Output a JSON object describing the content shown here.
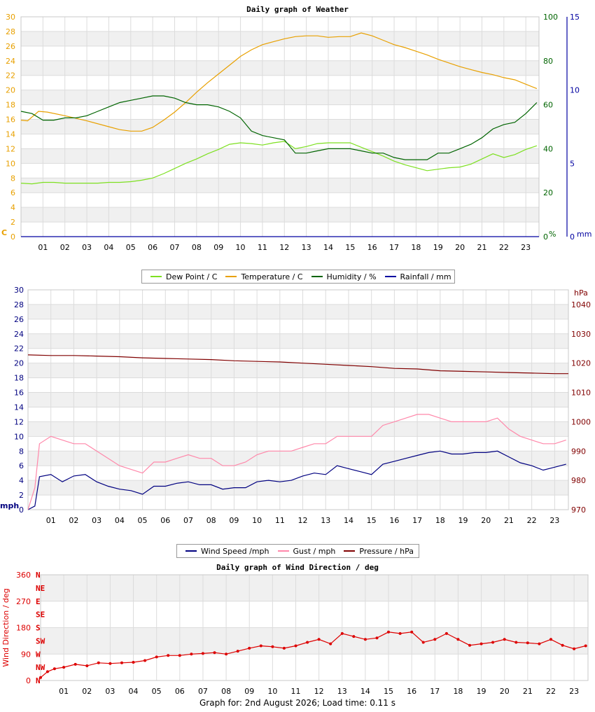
{
  "footer_text": "Graph for: 2nd August 2026; Load time: 0.11 s",
  "chart_data": [
    {
      "type": "line",
      "title": "Daily graph of Weather",
      "x_ticks": [
        "01",
        "02",
        "03",
        "04",
        "05",
        "06",
        "07",
        "08",
        "09",
        "10",
        "11",
        "12",
        "13",
        "14",
        "15",
        "16",
        "17",
        "18",
        "19",
        "20",
        "21",
        "22",
        "23"
      ],
      "grid": true,
      "legend_position": "bottom",
      "axes": {
        "left": {
          "label": "C",
          "ylim": [
            0,
            30
          ],
          "ticks": [
            0,
            2,
            4,
            6,
            8,
            10,
            12,
            14,
            16,
            18,
            20,
            22,
            24,
            26,
            28,
            30
          ],
          "color": "#e8a000"
        },
        "right1": {
          "label": "%",
          "ylim": [
            0,
            100
          ],
          "ticks": [
            0,
            20,
            40,
            60,
            80,
            100
          ],
          "color": "#006400"
        },
        "right2": {
          "label": "mm",
          "ylim": [
            0,
            15
          ],
          "ticks": [
            0,
            5,
            10,
            15
          ],
          "color": "#0000a0"
        }
      },
      "series": [
        {
          "name": "Dew Point / C",
          "axis": "left",
          "color": "#7de020",
          "x": [
            0,
            0.5,
            1,
            1.5,
            2,
            2.5,
            3,
            3.5,
            4,
            4.5,
            5,
            5.5,
            6,
            6.5,
            7,
            7.5,
            8,
            8.5,
            9,
            9.5,
            10,
            10.5,
            11,
            11.5,
            12,
            12.5,
            13,
            13.5,
            14,
            14.5,
            15,
            15.5,
            16,
            16.5,
            17,
            17.5,
            18,
            18.5,
            19,
            19.5,
            20,
            20.5,
            21,
            21.5,
            22,
            22.5,
            23,
            23.5
          ],
          "y": [
            7.3,
            7.2,
            7.4,
            7.4,
            7.3,
            7.3,
            7.3,
            7.3,
            7.4,
            7.4,
            7.5,
            7.7,
            8.0,
            8.6,
            9.3,
            10.0,
            10.6,
            11.3,
            11.9,
            12.6,
            12.8,
            12.7,
            12.5,
            12.8,
            13.0,
            12.0,
            12.3,
            12.7,
            12.8,
            12.8,
            12.8,
            12.2,
            11.6,
            11.0,
            10.3,
            9.8,
            9.4,
            9.0,
            9.2,
            9.4,
            9.5,
            9.9,
            10.6,
            11.3,
            10.8,
            11.2,
            11.9,
            12.4
          ]
        },
        {
          "name": "Temperature / C",
          "axis": "left",
          "color": "#e8a000",
          "x": [
            0,
            0.3,
            0.8,
            1.2,
            2,
            3,
            4,
            4.5,
            5,
            5.5,
            6,
            6.5,
            7,
            7.5,
            8,
            8.5,
            9,
            9.5,
            10,
            10.5,
            11,
            11.5,
            12,
            12.5,
            13,
            13.5,
            14,
            14.5,
            15,
            15.5,
            16,
            16.5,
            17,
            17.5,
            18,
            18.5,
            19,
            19.5,
            20,
            20.5,
            21,
            21.5,
            22,
            22.5,
            23,
            23.5
          ],
          "y": [
            15.9,
            15.8,
            17.1,
            17.0,
            16.5,
            15.8,
            15.0,
            14.6,
            14.4,
            14.4,
            14.9,
            15.9,
            17.0,
            18.3,
            19.7,
            21.0,
            22.2,
            23.4,
            24.6,
            25.5,
            26.2,
            26.6,
            27.0,
            27.3,
            27.4,
            27.4,
            27.2,
            27.3,
            27.3,
            27.8,
            27.4,
            26.8,
            26.2,
            25.8,
            25.3,
            24.8,
            24.2,
            23.7,
            23.2,
            22.8,
            22.4,
            22.1,
            21.7,
            21.4,
            20.8,
            20.2
          ]
        },
        {
          "name": "Humidity / %",
          "axis": "right1",
          "color": "#006400",
          "x": [
            0,
            0.5,
            1,
            1.5,
            2,
            2.5,
            3,
            3.5,
            4,
            4.5,
            5,
            5.5,
            6,
            6.5,
            7,
            7.5,
            8,
            8.5,
            9,
            9.5,
            10,
            10.5,
            11,
            11.5,
            12,
            12.5,
            13,
            13.5,
            14,
            14.5,
            15,
            15.5,
            16,
            16.5,
            17,
            17.5,
            18,
            18.5,
            19,
            19.5,
            20,
            20.5,
            21,
            21.5,
            22,
            22.5,
            23,
            23.5
          ],
          "y": [
            57,
            56,
            53,
            53,
            54,
            54,
            55,
            57,
            59,
            61,
            62,
            63,
            64,
            64,
            63,
            61,
            60,
            60,
            59,
            57,
            54,
            48,
            46,
            45,
            44,
            38,
            38,
            39,
            40,
            40,
            40,
            39,
            38,
            38,
            36,
            35,
            35,
            35,
            38,
            38,
            40,
            42,
            45,
            49,
            51,
            52,
            56,
            61
          ]
        },
        {
          "name": "Rainfall / mm",
          "axis": "right2",
          "color": "#0000a0",
          "x": [
            0,
            23.6
          ],
          "y": [
            0,
            0
          ]
        }
      ]
    },
    {
      "type": "line",
      "title": "",
      "x_ticks": [
        "01",
        "02",
        "03",
        "04",
        "05",
        "06",
        "07",
        "08",
        "09",
        "10",
        "11",
        "12",
        "13",
        "14",
        "15",
        "16",
        "17",
        "18",
        "19",
        "20",
        "21",
        "22",
        "23"
      ],
      "grid": true,
      "legend_position": "bottom",
      "axes": {
        "left": {
          "label": "mph",
          "ylim": [
            0,
            30
          ],
          "ticks": [
            0,
            2,
            4,
            6,
            8,
            10,
            12,
            14,
            16,
            18,
            20,
            22,
            24,
            26,
            28,
            30
          ],
          "color": "#000080"
        },
        "right": {
          "label": "hPa",
          "ylim": [
            970,
            1045
          ],
          "ticks": [
            970,
            980,
            990,
            1000,
            1010,
            1020,
            1030,
            1040
          ],
          "color": "#800000"
        }
      },
      "series": [
        {
          "name": "Wind Speed /mph",
          "axis": "left",
          "color": "#000080",
          "x": [
            0,
            0.3,
            0.5,
            1,
            1.5,
            2,
            2.5,
            3,
            3.5,
            4,
            4.5,
            5,
            5.5,
            6,
            6.5,
            7,
            7.5,
            8,
            8.5,
            9,
            9.5,
            10,
            10.5,
            11,
            11.5,
            12,
            12.5,
            13,
            13.5,
            14,
            14.5,
            15,
            15.5,
            16,
            16.5,
            17,
            17.5,
            18,
            18.5,
            19,
            19.5,
            20,
            20.5,
            21,
            21.5,
            22,
            22.5,
            23,
            23.5
          ],
          "y": [
            0,
            0.5,
            4.5,
            4.8,
            3.8,
            4.6,
            4.8,
            3.8,
            3.2,
            2.8,
            2.6,
            2.1,
            3.2,
            3.2,
            3.6,
            3.8,
            3.4,
            3.4,
            2.8,
            3.0,
            3.0,
            3.8,
            4.0,
            3.8,
            4.0,
            4.6,
            5.0,
            4.8,
            6.0,
            5.6,
            5.2,
            4.8,
            6.2,
            6.6,
            7.0,
            7.4,
            7.8,
            8.0,
            7.6,
            7.6,
            7.8,
            7.8,
            8.0,
            7.2,
            6.4,
            6.0,
            5.4,
            5.8,
            6.2
          ]
        },
        {
          "name": "Gust / mph",
          "axis": "left",
          "color": "#ff88aa",
          "x": [
            0,
            0.3,
            0.5,
            1,
            1.5,
            2,
            2.5,
            3,
            3.5,
            4,
            4.5,
            5,
            5.5,
            6,
            6.5,
            7,
            7.5,
            8,
            8.5,
            9,
            9.5,
            10,
            10.5,
            11,
            11.5,
            12,
            12.5,
            13,
            13.5,
            14,
            14.5,
            15,
            15.5,
            16,
            16.5,
            17,
            17.5,
            18,
            18.5,
            19,
            19.5,
            20,
            20.5,
            21,
            21.5,
            22,
            22.5,
            23,
            23.5
          ],
          "y": [
            0,
            3,
            9,
            10,
            9.5,
            9,
            9,
            8,
            7,
            6,
            5.5,
            5,
            6.5,
            6.5,
            7,
            7.5,
            7,
            7,
            6,
            6,
            6.5,
            7.5,
            8,
            8,
            8,
            8.5,
            9,
            9,
            10,
            10,
            10,
            10,
            11.5,
            12,
            12.5,
            13,
            13,
            12.5,
            12,
            12,
            12,
            12,
            12.5,
            11,
            10,
            9.5,
            9,
            9,
            9.5
          ]
        },
        {
          "name": "Pressure / hPa",
          "axis": "right",
          "color": "#800000",
          "x": [
            0,
            1,
            2,
            3,
            4,
            5,
            6,
            7,
            8,
            9,
            10,
            11,
            12,
            13,
            14,
            15,
            16,
            17,
            18,
            19,
            20,
            21,
            22,
            23,
            23.6
          ],
          "y": [
            1022.8,
            1022.6,
            1022.6,
            1022.4,
            1022.2,
            1021.8,
            1021.6,
            1021.4,
            1021.2,
            1020.8,
            1020.6,
            1020.4,
            1020.0,
            1019.6,
            1019.2,
            1018.8,
            1018.2,
            1018.0,
            1017.4,
            1017.2,
            1017.0,
            1016.8,
            1016.6,
            1016.4,
            1016.4
          ]
        }
      ]
    },
    {
      "type": "scatter",
      "title": "Daily graph of Wind Direction / deg",
      "ylabel": "Wind Direction / deg",
      "x_ticks": [
        "01",
        "02",
        "03",
        "04",
        "05",
        "06",
        "07",
        "08",
        "09",
        "10",
        "11",
        "12",
        "13",
        "14",
        "15",
        "16",
        "17",
        "18",
        "19",
        "20",
        "21",
        "22",
        "23"
      ],
      "ylim": [
        0,
        360
      ],
      "y_ticks": [
        0,
        90,
        180,
        270,
        360
      ],
      "compass_labels": [
        "N",
        "NE",
        "E",
        "SE",
        "S",
        "SW",
        "W",
        "NW",
        "N"
      ],
      "grid": true,
      "color": "#dd0000",
      "series": [
        {
          "name": "",
          "color": "#dd0000",
          "x": [
            0,
            0.3,
            0.6,
            1,
            1.5,
            2,
            2.5,
            3,
            3.5,
            4,
            4.5,
            5,
            5.5,
            6,
            6.5,
            7,
            7.5,
            8,
            8.5,
            9,
            9.5,
            10,
            10.5,
            11,
            11.5,
            12,
            12.5,
            13,
            13.5,
            14,
            14.5,
            15,
            15.5,
            16,
            16.5,
            17,
            17.5,
            18,
            18.5,
            19,
            19.5,
            20,
            20.5,
            21,
            21.5,
            22,
            22.5,
            23,
            23.5
          ],
          "y": [
            10,
            30,
            40,
            45,
            55,
            50,
            60,
            58,
            60,
            62,
            68,
            80,
            85,
            85,
            90,
            92,
            95,
            90,
            100,
            110,
            118,
            115,
            110,
            118,
            130,
            140,
            125,
            160,
            150,
            140,
            145,
            165,
            160,
            165,
            130,
            140,
            160,
            140,
            120,
            125,
            130,
            140,
            130,
            128,
            125,
            140,
            120,
            108,
            118
          ]
        }
      ]
    }
  ]
}
